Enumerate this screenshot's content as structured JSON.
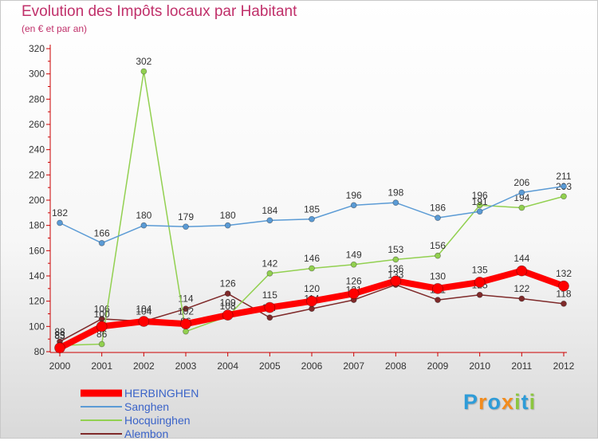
{
  "header": {
    "title": "Evolution des Impôts locaux par Habitant",
    "subtitle": "(en € et par an)"
  },
  "colors": {
    "title": "#c0306a",
    "axis": "#cc0000",
    "tick_text": "#333333",
    "legend_text": "#3a63c8",
    "HERBINGHEN": "#ff0000",
    "Sanghen": "#5b9bd5",
    "Hocquinghen": "#92d050",
    "Alembon": "#7f2a2a"
  },
  "chart_data": {
    "type": "line",
    "title": "Evolution des Impôts locaux par Habitant",
    "subtitle": "(en € et par an)",
    "xlabel": "",
    "ylabel": "",
    "ylim": [
      80,
      320
    ],
    "yticks": [
      80,
      100,
      120,
      140,
      160,
      180,
      200,
      220,
      240,
      260,
      280,
      300,
      320
    ],
    "grid": false,
    "legend_position": "bottom-left",
    "categories": [
      "2000",
      "2001",
      "2002",
      "2003",
      "2004",
      "2005",
      "2006",
      "2007",
      "2008",
      "2009",
      "2010",
      "2011",
      "2012"
    ],
    "series": [
      {
        "name": "Alembon",
        "values": [
          88,
          106,
          104,
          114,
          126,
          107,
          114,
          121,
          133,
          121,
          125,
          122,
          118
        ]
      },
      {
        "name": "Hocquinghen",
        "values": [
          85,
          86,
          302,
          96,
          108,
          142,
          146,
          149,
          153,
          156,
          196,
          194,
          203
        ]
      },
      {
        "name": "Sanghen",
        "values": [
          182,
          166,
          180,
          179,
          180,
          184,
          185,
          196,
          198,
          186,
          191,
          206,
          211
        ]
      },
      {
        "name": "HERBINGHEN",
        "values": [
          83,
          100,
          104,
          102,
          109,
          115,
          120,
          126,
          136,
          130,
          135,
          144,
          132
        ]
      }
    ]
  },
  "legend": {
    "items": [
      {
        "label": "HERBINGHEN"
      },
      {
        "label": "Sanghen"
      },
      {
        "label": "Hocquinghen"
      },
      {
        "label": "Alembon"
      }
    ]
  },
  "logo": {
    "letters": [
      "P",
      "r",
      "o",
      "x",
      "i",
      "t",
      "i"
    ],
    "colors": [
      "#2e9cd8",
      "#f28c1e",
      "#2e9cd8",
      "#f28c1e",
      "#8cc63f",
      "#2e9cd8",
      "#8cc63f"
    ]
  }
}
